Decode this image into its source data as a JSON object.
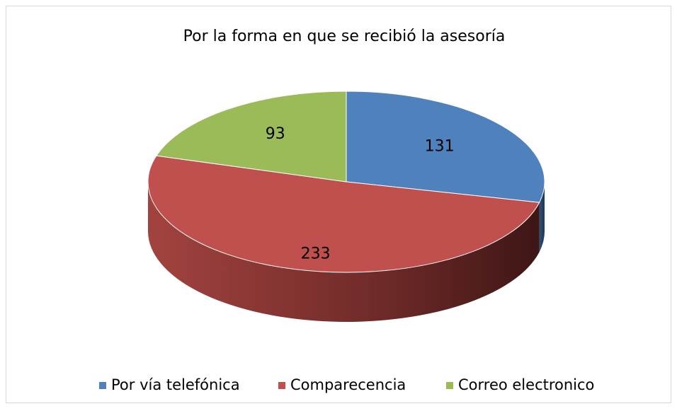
{
  "chart_data": {
    "type": "pie",
    "title": "Por la forma en que se recibió la asesoría",
    "categories": [
      "Por vía telefónica",
      "Comparecencia",
      "Correo electronico"
    ],
    "values": [
      131,
      233,
      93
    ],
    "colors": [
      "#4f81bd",
      "#c0504d",
      "#9bbb59"
    ],
    "legend": "bottom"
  }
}
